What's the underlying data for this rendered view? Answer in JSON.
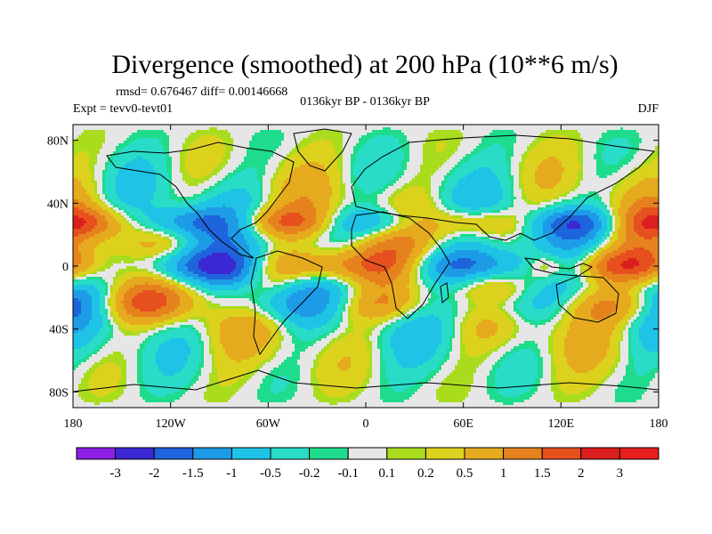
{
  "chart_data": {
    "type": "heatmap",
    "title": "Divergence (smoothed) at 200 hPa (10**6 m/s)",
    "stats_text": "rmsd= 0.676467 diff= 0.00146668",
    "expt_text": "Expt = tevv0-tevt01",
    "period_text": "0136kyr BP - 0136kyr BP",
    "season_text": "DJF",
    "lon_range": [
      -180,
      180
    ],
    "lat_range": [
      -90,
      90
    ],
    "x_ticks": [
      {
        "lon": -180,
        "label": "180"
      },
      {
        "lon": -120,
        "label": "120W"
      },
      {
        "lon": -60,
        "label": "60W"
      },
      {
        "lon": 0,
        "label": "0"
      },
      {
        "lon": 60,
        "label": "60E"
      },
      {
        "lon": 120,
        "label": "120E"
      },
      {
        "lon": 180,
        "label": "180"
      }
    ],
    "y_ticks": [
      {
        "lat": 80,
        "label": "80N"
      },
      {
        "lat": 40,
        "label": "40N"
      },
      {
        "lat": 0,
        "label": "0"
      },
      {
        "lat": -40,
        "label": "40S"
      },
      {
        "lat": -80,
        "label": "80S"
      }
    ],
    "colorbar": {
      "levels": [
        "-3",
        "-2",
        "-1.5",
        "-1",
        "-0.5",
        "-0.2",
        "-0.1",
        "0.1",
        "0.2",
        "0.5",
        "1",
        "1.5",
        "2",
        "3"
      ],
      "colors": [
        "#8c1ee6",
        "#3c28d2",
        "#1e64dc",
        "#1e9be6",
        "#1ec3e6",
        "#28dcc8",
        "#1edc8c",
        "#e6e6e6",
        "#aadc1e",
        "#dcd21e",
        "#e6aa1e",
        "#e6821e",
        "#e6501e",
        "#dc1e1e",
        "#e61e1e"
      ]
    }
  }
}
